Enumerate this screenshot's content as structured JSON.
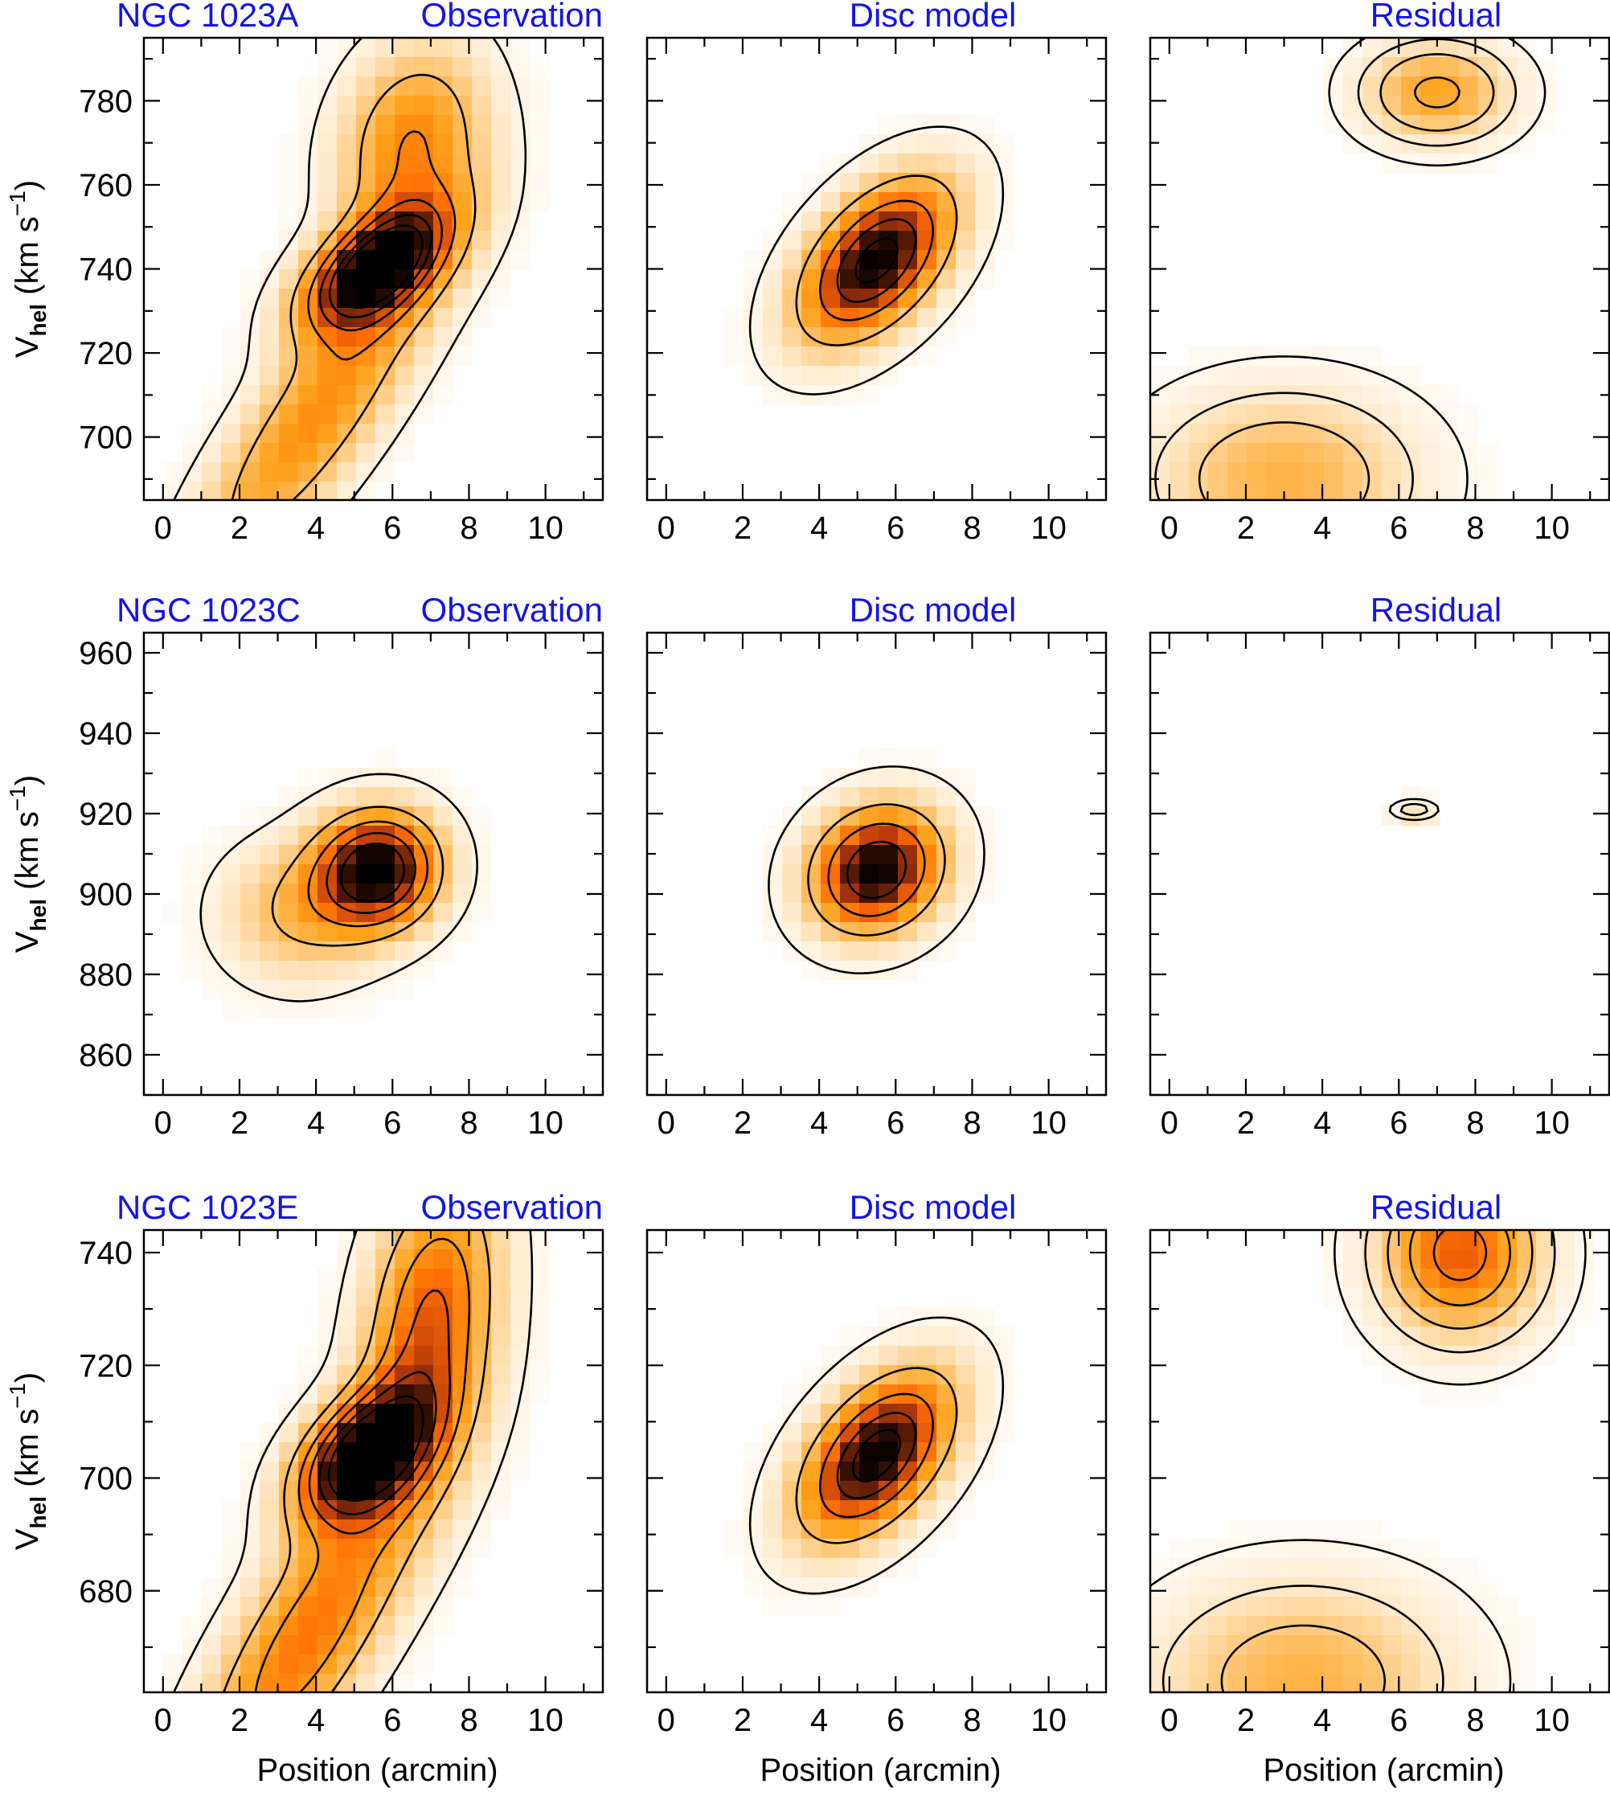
{
  "colors": {
    "title": "#1414e6",
    "frame": "#000000",
    "contour": "#000000"
  },
  "colormap": [
    "#ffffff",
    "#ffe6c2",
    "#ffc168",
    "#ffa019",
    "#ff6d05",
    "#b83a0a",
    "#3e1204",
    "#000000"
  ],
  "chart_data": [
    {
      "type": "heatmap",
      "row": "NGC 1023A",
      "panel": "observation",
      "title_left": "NGC 1023A",
      "title_right": "Observation",
      "xlabel": "",
      "ylabel": "V",
      "ylabel_sub": "hel",
      "ylabel_units": " (km s",
      "ylabel_sup": "−1",
      "ylabel_close": ")",
      "xlim": [
        -0.5,
        11.5
      ],
      "ylim": [
        685,
        795
      ],
      "xticks": [
        0,
        2,
        4,
        6,
        8,
        10
      ],
      "yticks": [
        700,
        720,
        740,
        760,
        780
      ],
      "components": [
        {
          "x0": 5.5,
          "y0": 740,
          "sx": 1.3,
          "sy": 10,
          "rho": 0.55,
          "amp": 1.0
        },
        {
          "x0": 6.5,
          "y0": 770,
          "sx": 1.3,
          "sy": 16,
          "rho": 0.2,
          "amp": 0.5
        },
        {
          "x0": 4.0,
          "y0": 705,
          "sx": 2.3,
          "sy": 28,
          "rho": 0.85,
          "amp": 0.48
        }
      ],
      "contour_levels": [
        0.06,
        0.3,
        0.5,
        0.66,
        0.8,
        0.92
      ]
    },
    {
      "type": "heatmap",
      "row": "NGC 1023A",
      "panel": "model",
      "title_left": "",
      "title_right": "Disc model",
      "xlabel": "",
      "xlim": [
        -0.5,
        11.5
      ],
      "ylim": [
        685,
        795
      ],
      "xticks": [
        0,
        2,
        4,
        6,
        8,
        10
      ],
      "yticks": [
        700,
        720,
        740,
        760,
        780
      ],
      "components": [
        {
          "x0": 5.5,
          "y0": 742,
          "sx": 1.35,
          "sy": 13,
          "rho": 0.5,
          "amp": 1.0
        }
      ],
      "contour_levels": [
        0.05,
        0.3,
        0.55,
        0.75,
        0.92
      ]
    },
    {
      "type": "heatmap",
      "row": "NGC 1023A",
      "panel": "residual",
      "title_left": "",
      "title_right": "Residual",
      "xlabel": "",
      "xlim": [
        -0.5,
        11.5
      ],
      "ylim": [
        685,
        795
      ],
      "xticks": [
        0,
        2,
        4,
        6,
        8,
        10
      ],
      "yticks": [
        700,
        720,
        740,
        760,
        780
      ],
      "components": [
        {
          "x0": 7.0,
          "y0": 782,
          "sx": 1.3,
          "sy": 8,
          "rho": 0.0,
          "amp": 0.42
        },
        {
          "x0": 3.0,
          "y0": 690,
          "sx": 2.3,
          "sy": 14,
          "rho": 0.0,
          "amp": 0.35
        }
      ],
      "contour_levels": [
        0.04,
        0.12,
        0.22,
        0.38
      ]
    },
    {
      "type": "heatmap",
      "row": "NGC 1023C",
      "panel": "observation",
      "title_left": "NGC 1023C",
      "title_right": "Observation",
      "xlabel": "",
      "ylabel": "V",
      "ylabel_sub": "hel",
      "ylabel_units": " (km s",
      "ylabel_sup": "−1",
      "ylabel_close": ")",
      "xlim": [
        -0.5,
        11.5
      ],
      "ylim": [
        850,
        965
      ],
      "xticks": [
        0,
        2,
        4,
        6,
        8,
        10
      ],
      "yticks": [
        860,
        880,
        900,
        920,
        940,
        960
      ],
      "components": [
        {
          "x0": 5.6,
          "y0": 906,
          "sx": 1.1,
          "sy": 10,
          "rho": 0.05,
          "amp": 1.0
        },
        {
          "x0": 3.5,
          "y0": 895,
          "sx": 1.4,
          "sy": 12,
          "rho": 0.0,
          "amp": 0.3
        }
      ],
      "contour_levels": [
        0.06,
        0.3,
        0.5,
        0.68,
        0.84
      ]
    },
    {
      "type": "heatmap",
      "row": "NGC 1023C",
      "panel": "model",
      "title_left": "",
      "title_right": "Disc model",
      "xlabel": "",
      "xlim": [
        -0.5,
        11.5
      ],
      "ylim": [
        850,
        965
      ],
      "xticks": [
        0,
        2,
        4,
        6,
        8,
        10
      ],
      "yticks": [
        860,
        880,
        900,
        920,
        940,
        960
      ],
      "components": [
        {
          "x0": 5.5,
          "y0": 906,
          "sx": 1.15,
          "sy": 10.5,
          "rho": 0.15,
          "amp": 1.0
        }
      ],
      "contour_levels": [
        0.05,
        0.3,
        0.55,
        0.8
      ]
    },
    {
      "type": "heatmap",
      "row": "NGC 1023C",
      "panel": "residual",
      "title_left": "",
      "title_right": "Residual",
      "xlabel": "",
      "xlim": [
        -0.5,
        11.5
      ],
      "ylim": [
        850,
        965
      ],
      "xticks": [
        0,
        2,
        4,
        6,
        8,
        10
      ],
      "yticks": [
        860,
        880,
        900,
        920,
        940,
        960
      ],
      "components": [
        {
          "x0": 6.4,
          "y0": 921,
          "sx": 0.45,
          "sy": 1.8,
          "rho": 0.0,
          "amp": 0.22
        }
      ],
      "contour_levels": [
        0.08,
        0.16
      ]
    },
    {
      "type": "heatmap",
      "row": "NGC 1023E",
      "panel": "observation",
      "title_left": "NGC 1023E",
      "title_right": "Observation",
      "xlabel": "Position (arcmin)",
      "ylabel": "V",
      "ylabel_sub": "hel",
      "ylabel_units": " (km s",
      "ylabel_sup": "−1",
      "ylabel_close": ")",
      "xlim": [
        -0.5,
        11.5
      ],
      "ylim": [
        662,
        744
      ],
      "xticks": [
        0,
        2,
        4,
        6,
        8,
        10
      ],
      "yticks": [
        680,
        700,
        720,
        740
      ],
      "components": [
        {
          "x0": 5.2,
          "y0": 704,
          "sx": 1.2,
          "sy": 8,
          "rho": 0.45,
          "amp": 1.0
        },
        {
          "x0": 7.0,
          "y0": 728,
          "sx": 1.2,
          "sy": 18,
          "rho": 0.3,
          "amp": 0.62
        },
        {
          "x0": 3.8,
          "y0": 672,
          "sx": 2.2,
          "sy": 22,
          "rho": 0.8,
          "amp": 0.55
        }
      ],
      "contour_levels": [
        0.06,
        0.28,
        0.45,
        0.6,
        0.75,
        0.9
      ]
    },
    {
      "type": "heatmap",
      "row": "NGC 1023E",
      "panel": "model",
      "title_left": "",
      "title_right": "Disc model",
      "xlabel": "Position (arcmin)",
      "xlim": [
        -0.5,
        11.5
      ],
      "ylim": [
        662,
        744
      ],
      "xticks": [
        0,
        2,
        4,
        6,
        8,
        10
      ],
      "yticks": [
        680,
        700,
        720,
        740
      ],
      "components": [
        {
          "x0": 5.5,
          "y0": 704,
          "sx": 1.35,
          "sy": 10,
          "rho": 0.5,
          "amp": 1.0
        }
      ],
      "contour_levels": [
        0.05,
        0.3,
        0.55,
        0.75,
        0.9
      ]
    },
    {
      "type": "heatmap",
      "row": "NGC 1023E",
      "panel": "residual",
      "title_left": "",
      "title_right": "Residual",
      "xlabel": "Position (arcmin)",
      "xlim": [
        -0.5,
        11.5
      ],
      "ylim": [
        662,
        744
      ],
      "xticks": [
        0,
        2,
        4,
        6,
        8,
        10
      ],
      "yticks": [
        680,
        700,
        720,
        740
      ],
      "components": [
        {
          "x0": 7.6,
          "y0": 740,
          "sx": 1.4,
          "sy": 10,
          "rho": 0.0,
          "amp": 0.62
        },
        {
          "x0": 3.5,
          "y0": 664,
          "sx": 2.6,
          "sy": 12,
          "rho": 0.0,
          "amp": 0.35
        }
      ],
      "contour_levels": [
        0.04,
        0.13,
        0.25,
        0.4,
        0.55
      ]
    }
  ]
}
